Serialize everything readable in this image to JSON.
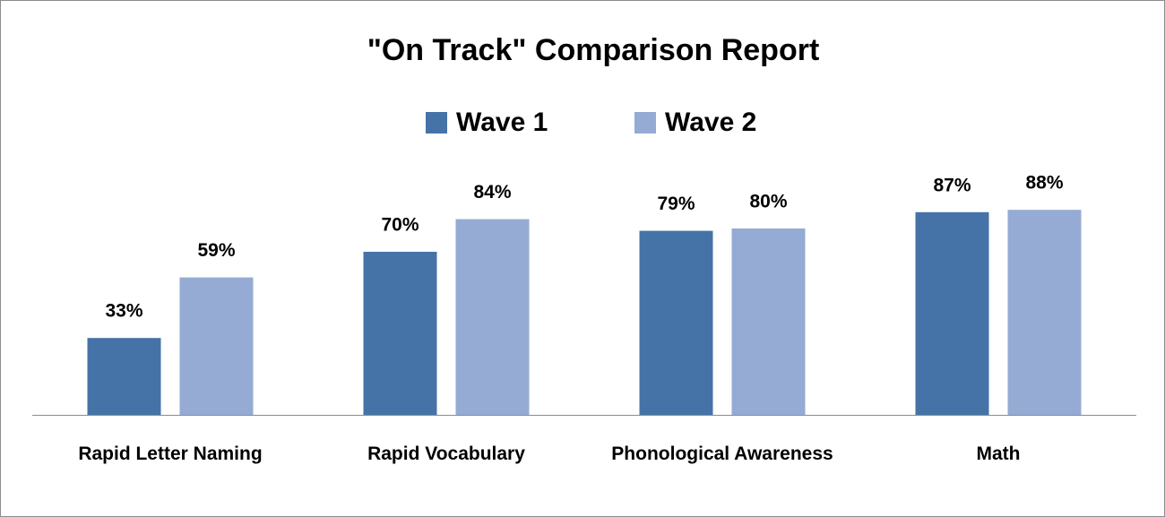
{
  "chart_data": {
    "type": "bar",
    "title": "\"On Track\" Comparison Report",
    "categories": [
      "Rapid Letter Naming",
      "Rapid Vocabulary",
      "Phonological Awareness",
      "Math"
    ],
    "series": [
      {
        "name": "Wave 1",
        "color": "#4573a7",
        "values": [
          33,
          70,
          79,
          87
        ],
        "value_labels": [
          "33%",
          "70%",
          "79%",
          "87%"
        ]
      },
      {
        "name": "Wave 2",
        "color": "#95abd3",
        "values": [
          59,
          84,
          80,
          88
        ],
        "value_labels": [
          "59%",
          "84%",
          "80%",
          "88%"
        ]
      }
    ],
    "legend": "top"
  }
}
